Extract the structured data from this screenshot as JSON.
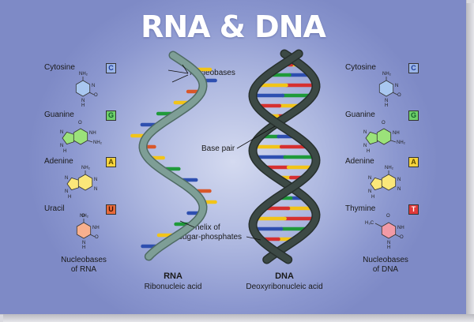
{
  "title": "RNA & DNA",
  "left_column": {
    "items": [
      {
        "name": "Cytosine",
        "letter": "C"
      },
      {
        "name": "Guanine",
        "letter": "G"
      },
      {
        "name": "Adenine",
        "letter": "A"
      },
      {
        "name": "Uracil",
        "letter": "U"
      }
    ],
    "caption_line1": "Nucleobases",
    "caption_line2": "of RNA"
  },
  "right_column": {
    "items": [
      {
        "name": "Cytosine",
        "letter": "C"
      },
      {
        "name": "Guanine",
        "letter": "G"
      },
      {
        "name": "Adenine",
        "letter": "A"
      },
      {
        "name": "Thymine",
        "letter": "T"
      }
    ],
    "caption_line1": "Nucleobases",
    "caption_line2": "of DNA"
  },
  "callouts": {
    "nucleobases": "Nucleobases",
    "base_pair": "Base pair",
    "helix_line1": "helix of",
    "helix_line2": "sugar-phosphates"
  },
  "rna": {
    "name": "RNA",
    "full_name": "Ribonucleic acid"
  },
  "dna": {
    "name": "DNA",
    "full_name": "Deoxyribonucleic acid"
  },
  "molecule_labels": {
    "nh2": "NH₂",
    "nh": "NH",
    "n": "N",
    "h": "H",
    "o": "O",
    "h3c": "H₃C"
  },
  "colors": {
    "cytosine": "#2e4fb0",
    "guanine": "#1f9a3a",
    "adenine": "#f2c418",
    "uracil": "#d9572a",
    "thymine": "#d63030",
    "cytosine_fill": "#a9c7f0",
    "guanine_fill": "#9be27a",
    "adenine_fill": "#fbe77a",
    "uracil_fill": "#f8b08e",
    "thymine_fill": "#f19aa6",
    "rna_helix": "#7e9e96",
    "dna_helix": "#3c4945"
  }
}
